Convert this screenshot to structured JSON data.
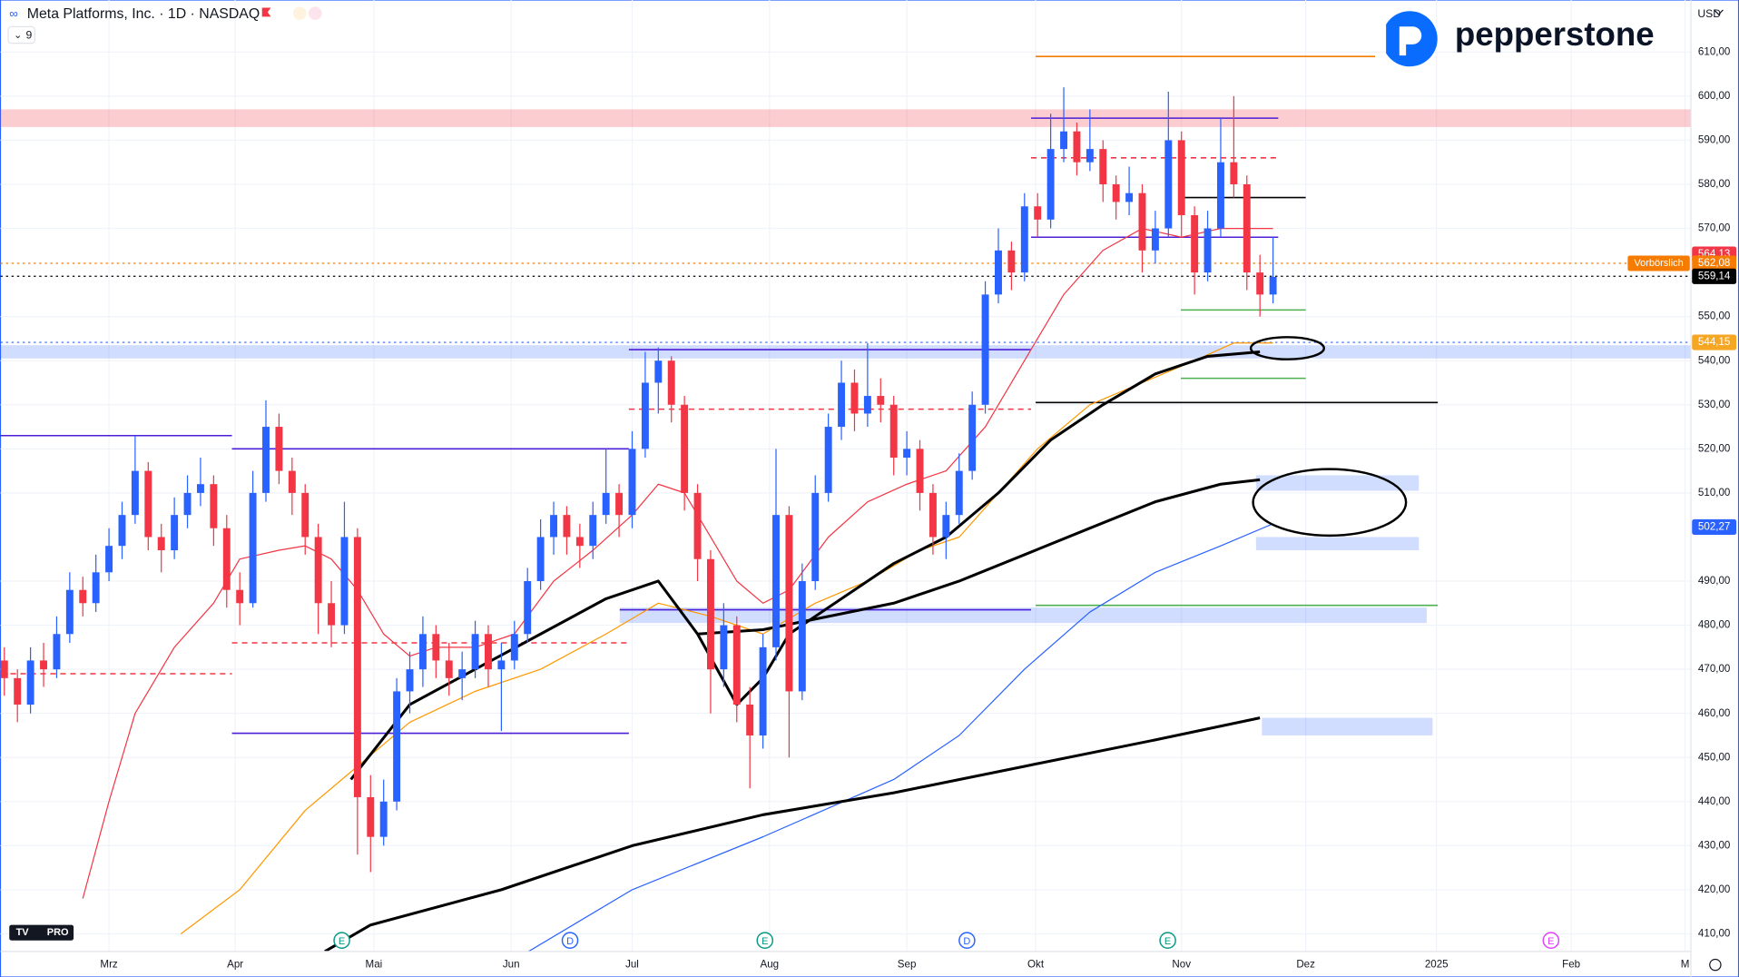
{
  "header": {
    "title": "Meta Platforms, Inc. · 1D · NASDAQ",
    "indicator_count": 9,
    "currency": "USD",
    "brand": "pepperstone",
    "premarket_label": "Vorbörslich",
    "badge": "PRO"
  },
  "chart_data": {
    "type": "candlestick",
    "up_color": "#2962ff",
    "down_color": "#f23645",
    "grid": true,
    "xlim": [
      -16.6,
      241.9
    ],
    "ylim": [
      406,
      621.8
    ],
    "xticks": [
      {
        "value": 0,
        "label": "Mrz"
      },
      {
        "value": 19.3,
        "label": "Apr"
      },
      {
        "value": 40.5,
        "label": "Mai"
      },
      {
        "value": 61.5,
        "label": "Jun"
      },
      {
        "value": 80,
        "label": "Jul"
      },
      {
        "value": 101,
        "label": "Aug"
      },
      {
        "value": 122,
        "label": "Sep"
      },
      {
        "value": 141.7,
        "label": "Okt"
      },
      {
        "value": 164,
        "label": "Nov"
      },
      {
        "value": 183,
        "label": "Dez"
      },
      {
        "value": 203,
        "label": "2025"
      },
      {
        "value": 223.6,
        "label": "Feb"
      },
      {
        "value": 241,
        "label": "M"
      }
    ],
    "yticks": [
      {
        "value": 610,
        "label": "610,00"
      },
      {
        "value": 600,
        "label": "600,00"
      },
      {
        "value": 590,
        "label": "590,00"
      },
      {
        "value": 580,
        "label": "580,00"
      },
      {
        "value": 570,
        "label": "570,00"
      },
      {
        "value": 550,
        "label": "550,00"
      },
      {
        "value": 540,
        "label": "540,00"
      },
      {
        "value": 530,
        "label": "530,00"
      },
      {
        "value": 520,
        "label": "520,00"
      },
      {
        "value": 510,
        "label": "510,00"
      },
      {
        "value": 490,
        "label": "490,00"
      },
      {
        "value": 480,
        "label": "480,00"
      },
      {
        "value": 470,
        "label": "470,00"
      },
      {
        "value": 460,
        "label": "460,00"
      },
      {
        "value": 450,
        "label": "450,00"
      },
      {
        "value": 440,
        "label": "440,00"
      },
      {
        "value": 430,
        "label": "430,00"
      },
      {
        "value": 420,
        "label": "420,00"
      },
      {
        "value": 410,
        "label": "410,00"
      }
    ],
    "x": [
      -16,
      -14,
      -12,
      -10,
      -8,
      -6,
      -4,
      -2,
      0,
      2,
      4,
      6,
      8,
      10,
      12,
      14,
      16,
      18,
      20,
      22,
      24,
      26,
      28,
      30,
      32,
      34,
      36,
      38,
      40,
      42,
      44,
      46,
      48,
      50,
      52,
      54,
      56,
      58,
      60,
      62,
      64,
      66,
      68,
      70,
      72,
      74,
      76,
      78,
      80,
      82,
      84,
      86,
      88,
      90,
      92,
      94,
      96,
      98,
      100,
      102,
      104,
      106,
      108,
      110,
      112,
      114,
      116,
      118,
      120,
      122,
      124,
      126,
      128,
      130,
      132,
      134,
      136,
      138,
      140,
      142,
      144,
      146,
      148,
      150,
      152,
      154,
      156,
      158,
      160,
      162,
      164,
      166,
      168,
      170,
      172,
      174,
      176,
      178
    ],
    "candles": [
      [
        472,
        475,
        464,
        468
      ],
      [
        468,
        470,
        458,
        462
      ],
      [
        462,
        475,
        460,
        472
      ],
      [
        472,
        476,
        466,
        470
      ],
      [
        470,
        482,
        468,
        478
      ],
      [
        478,
        492,
        476,
        488
      ],
      [
        488,
        491,
        482,
        485
      ],
      [
        485,
        496,
        483,
        492
      ],
      [
        492,
        502,
        490,
        498
      ],
      [
        498,
        508,
        495,
        505
      ],
      [
        505,
        523,
        503,
        515
      ],
      [
        515,
        517,
        497,
        500
      ],
      [
        500,
        503,
        492,
        497
      ],
      [
        497,
        509,
        495,
        505
      ],
      [
        505,
        514,
        502,
        510
      ],
      [
        510,
        518,
        507,
        512
      ],
      [
        512,
        514,
        498,
        502
      ],
      [
        502,
        505,
        484,
        488
      ],
      [
        488,
        492,
        480,
        485
      ],
      [
        485,
        515,
        484,
        510
      ],
      [
        510,
        531,
        508,
        525
      ],
      [
        525,
        528,
        512,
        515
      ],
      [
        515,
        518,
        505,
        510
      ],
      [
        510,
        512,
        496,
        500
      ],
      [
        500,
        503,
        478,
        485
      ],
      [
        485,
        490,
        475,
        480
      ],
      [
        480,
        508,
        478,
        500
      ],
      [
        500,
        502,
        428,
        441
      ],
      [
        441,
        446,
        424,
        432
      ],
      [
        432,
        445,
        430,
        440
      ],
      [
        440,
        468,
        438,
        465
      ],
      [
        465,
        474,
        460,
        470
      ],
      [
        470,
        482,
        466,
        478
      ],
      [
        478,
        480,
        468,
        472
      ],
      [
        472,
        476,
        464,
        468
      ],
      [
        468,
        474,
        463,
        470
      ],
      [
        470,
        481,
        468,
        478
      ],
      [
        478,
        480,
        466,
        470
      ],
      [
        470,
        476,
        456,
        472
      ],
      [
        472,
        481,
        470,
        478
      ],
      [
        478,
        493,
        476,
        490
      ],
      [
        490,
        504,
        488,
        500
      ],
      [
        500,
        508,
        496,
        505
      ],
      [
        505,
        507,
        496,
        500
      ],
      [
        500,
        503,
        493,
        498
      ],
      [
        498,
        508,
        495,
        505
      ],
      [
        505,
        520,
        503,
        510
      ],
      [
        510,
        512,
        500,
        505
      ],
      [
        505,
        524,
        502,
        520
      ],
      [
        520,
        542,
        518,
        535
      ],
      [
        535,
        543,
        528,
        540
      ],
      [
        540,
        541,
        526,
        530
      ],
      [
        530,
        532,
        506,
        510
      ],
      [
        510,
        512,
        490,
        495
      ],
      [
        495,
        497,
        460,
        470
      ],
      [
        470,
        485,
        466,
        480
      ],
      [
        480,
        482,
        458,
        462
      ],
      [
        462,
        466,
        443,
        455
      ],
      [
        455,
        478,
        452,
        475
      ],
      [
        475,
        520,
        472,
        505
      ],
      [
        505,
        507,
        450,
        465
      ],
      [
        465,
        494,
        463,
        490
      ],
      [
        490,
        514,
        488,
        510
      ],
      [
        510,
        528,
        508,
        525
      ],
      [
        525,
        540,
        522,
        535
      ],
      [
        535,
        538,
        524,
        528
      ],
      [
        528,
        544,
        525,
        532
      ],
      [
        532,
        536,
        526,
        530
      ],
      [
        530,
        532,
        514,
        518
      ],
      [
        518,
        524,
        514,
        520
      ],
      [
        520,
        522,
        506,
        510
      ],
      [
        510,
        512,
        496,
        500
      ],
      [
        500,
        508,
        495,
        505
      ],
      [
        505,
        519,
        503,
        515
      ],
      [
        515,
        533,
        513,
        530
      ],
      [
        530,
        558,
        528,
        555
      ],
      [
        555,
        570,
        553,
        565
      ],
      [
        565,
        567,
        556,
        560
      ],
      [
        560,
        578,
        558,
        575
      ],
      [
        575,
        578,
        568,
        572
      ],
      [
        572,
        596,
        570,
        588
      ],
      [
        588,
        602,
        585,
        592
      ],
      [
        592,
        594,
        582,
        585
      ],
      [
        585,
        597,
        583,
        588
      ],
      [
        588,
        590,
        576,
        580
      ],
      [
        580,
        582,
        572,
        576
      ],
      [
        576,
        584,
        573,
        578
      ],
      [
        578,
        580,
        560,
        565
      ],
      [
        565,
        574,
        562,
        570
      ],
      [
        570,
        601,
        568,
        590
      ],
      [
        590,
        592,
        568,
        573
      ],
      [
        573,
        575,
        555,
        560
      ],
      [
        560,
        574,
        558,
        570
      ],
      [
        570,
        595,
        568,
        585
      ],
      [
        585,
        600,
        577,
        580
      ],
      [
        580,
        582,
        556,
        560
      ],
      [
        560,
        564,
        550,
        555
      ],
      [
        555,
        568,
        553,
        559
      ]
    ],
    "lines": [
      {
        "color": "#f23645",
        "width": 1,
        "x": [
          -4,
          0,
          4,
          10,
          16,
          20,
          26,
          30,
          34,
          38,
          42,
          46,
          50,
          56,
          62,
          68,
          74,
          80,
          84,
          88,
          92,
          96,
          100,
          104,
          110,
          116,
          122,
          128,
          134,
          140,
          146,
          152,
          158,
          164,
          170,
          178
        ],
        "values": [
          418,
          440,
          460,
          475,
          485,
          495,
          497,
          498,
          495,
          488,
          478,
          473,
          475,
          475,
          478,
          490,
          497,
          505,
          512,
          510,
          500,
          490,
          485,
          488,
          500,
          508,
          512,
          515,
          525,
          540,
          555,
          565,
          570,
          568,
          570,
          570
        ]
      },
      {
        "color": "#ff9800",
        "width": 1,
        "x": [
          11,
          20,
          30,
          38,
          46,
          56,
          66,
          76,
          84,
          92,
          100,
          108,
          116,
          124,
          130,
          136,
          142,
          150,
          158,
          166,
          172,
          178
        ],
        "values": [
          410,
          420,
          438,
          448,
          458,
          465,
          470,
          478,
          485,
          482,
          478,
          485,
          490,
          497,
          500,
          510,
          520,
          530,
          535,
          540,
          544,
          544
        ]
      },
      {
        "color": "#2962ff",
        "width": 1,
        "x": [
          63,
          80,
          100,
          120,
          130,
          140,
          150,
          160,
          170,
          178
        ],
        "values": [
          405,
          420,
          432,
          445,
          455,
          470,
          483,
          492,
          498,
          503
        ]
      },
      {
        "color": "#000000",
        "width": 2.5,
        "x": [
          37,
          46,
          56,
          66,
          76,
          84,
          90,
          96,
          100,
          104,
          112,
          120,
          128,
          136,
          144,
          152,
          160,
          168,
          176
        ],
        "values": [
          445,
          462,
          470,
          478,
          486,
          490,
          478,
          462,
          468,
          478,
          486,
          494,
          500,
          510,
          522,
          530,
          537,
          541,
          542
        ]
      },
      {
        "color": "#000000",
        "width": 2.5,
        "x": [
          90,
          100,
          110,
          120,
          130,
          140,
          150,
          160,
          170,
          176
        ],
        "values": [
          478,
          479,
          482,
          485,
          490,
          496,
          502,
          508,
          512,
          513
        ]
      },
      {
        "color": "#000000",
        "width": 2.5,
        "x": [
          33,
          40,
          60,
          80,
          100,
          120,
          140,
          160,
          176
        ],
        "values": [
          406,
          412,
          420,
          430,
          437,
          442,
          448,
          454,
          459
        ]
      }
    ],
    "zones": [
      {
        "from": 593,
        "to": 597,
        "x0": -16.6,
        "x1": 241.9,
        "color": "rgba(242,54,69,0.25)"
      },
      {
        "from": 540.5,
        "to": 543.5,
        "x0": -16.6,
        "x1": 241.9,
        "color": "rgba(41,98,255,0.22)"
      },
      {
        "from": 510.5,
        "to": 514,
        "x0": 175.4,
        "x1": 200.3,
        "color": "rgba(41,98,255,0.22)"
      },
      {
        "from": 497,
        "to": 500,
        "x0": 175.4,
        "x1": 200.3,
        "color": "rgba(41,98,255,0.22)"
      },
      {
        "from": 480.5,
        "to": 484,
        "x0": 78.1,
        "x1": 201.5,
        "color": "rgba(41,98,255,0.22)"
      },
      {
        "from": 455,
        "to": 459,
        "x0": 176.3,
        "x1": 202.4,
        "color": "rgba(41,98,255,0.22)"
      }
    ],
    "levels": [
      {
        "value": 595,
        "from": 141,
        "to": 178.8,
        "color": "#4c1ed6",
        "dashed": false
      },
      {
        "value": 568,
        "from": 141,
        "to": 178.8,
        "color": "#4c1ed6",
        "dashed": false
      },
      {
        "value": 542.5,
        "from": 79.5,
        "to": 141,
        "color": "#4c1ed6",
        "dashed": false
      },
      {
        "value": 523,
        "from": -16.6,
        "to": 18.8,
        "color": "#4c1ed6",
        "dashed": false
      },
      {
        "value": 520,
        "from": 18.8,
        "to": 79.5,
        "color": "#4c1ed6",
        "dashed": false
      },
      {
        "value": 483.5,
        "from": 78.1,
        "to": 141,
        "color": "#4c1ed6",
        "dashed": false
      },
      {
        "value": 455.5,
        "from": 18.8,
        "to": 79.5,
        "color": "#4c1ed6",
        "dashed": false
      },
      {
        "value": 586,
        "from": 141,
        "to": 178.8,
        "color": "#f23645",
        "dashed": true
      },
      {
        "value": 529,
        "from": 79.5,
        "to": 141,
        "color": "#f23645",
        "dashed": true
      },
      {
        "value": 476,
        "from": 18.8,
        "to": 79.5,
        "color": "#f23645",
        "dashed": true
      },
      {
        "value": 469,
        "from": -16.6,
        "to": 18.8,
        "color": "#f23645",
        "dashed": true
      },
      {
        "value": 577,
        "from": 163.9,
        "to": 183,
        "color": "#000000",
        "dashed": false
      },
      {
        "value": 530.5,
        "from": 141.7,
        "to": 203.2,
        "color": "#000000",
        "dashed": false
      },
      {
        "value": 551.5,
        "from": 163.9,
        "to": 183,
        "color": "#4caf50",
        "dashed": false
      },
      {
        "value": 536,
        "from": 163.9,
        "to": 183,
        "color": "#4caf50",
        "dashed": false
      },
      {
        "value": 484.5,
        "from": 141.7,
        "to": 203.2,
        "color": "#4caf50",
        "dashed": false
      },
      {
        "value": 609,
        "from": 141.7,
        "to": 193.6,
        "color": "#f57c00",
        "dashed": false
      }
    ],
    "price_tags": [
      {
        "value": 564.13,
        "label": "564,13",
        "color": "#f23645",
        "line": null
      },
      {
        "value": 562.08,
        "label": "562,08",
        "color": "#f57c00",
        "line": "#f57c00"
      },
      {
        "value": 559.14,
        "label": "559,14",
        "color": "#000000",
        "line": "#000000"
      },
      {
        "value": 544.15,
        "label": "544,15",
        "color": "#f5a623",
        "line": "#2962ff"
      },
      {
        "value": 502.27,
        "label": "502,27",
        "color": "#2962ff",
        "line": null
      }
    ],
    "events": [
      {
        "label": "E",
        "x": 35.6,
        "color": "#089981"
      },
      {
        "label": "D",
        "x": 70.5,
        "color": "#2962ff"
      },
      {
        "label": "E",
        "x": 100.3,
        "color": "#089981"
      },
      {
        "label": "D",
        "x": 131.2,
        "color": "#2962ff"
      },
      {
        "label": "E",
        "x": 161.9,
        "color": "#089981"
      },
      {
        "label": "E",
        "x": 220.5,
        "color": "#e040fb"
      }
    ]
  }
}
